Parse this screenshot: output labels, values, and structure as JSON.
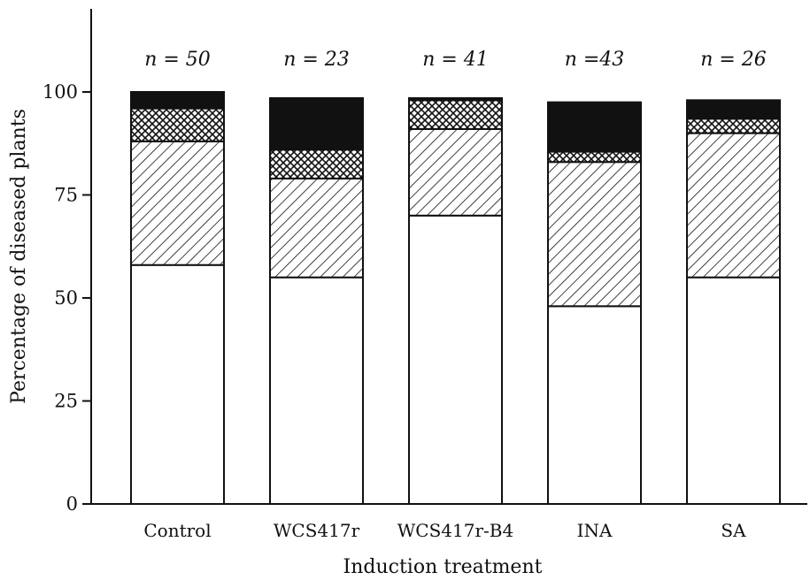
{
  "chart_data": {
    "type": "bar",
    "stacked": true,
    "categories": [
      "Control",
      "WCS417r",
      "WCS417r-B4",
      "INA",
      "SA"
    ],
    "n_labels": [
      "n = 50",
      "n = 23",
      "n = 41",
      "n =43",
      "n = 26"
    ],
    "series": [
      {
        "pattern": "none",
        "values": [
          58,
          55,
          70,
          48,
          55
        ]
      },
      {
        "pattern": "diagonal-hatch",
        "values": [
          30,
          24,
          21,
          35,
          35
        ]
      },
      {
        "pattern": "crosshatch",
        "values": [
          8,
          7,
          7,
          2.5,
          3.5
        ]
      },
      {
        "pattern": "solid-black",
        "values": [
          4,
          12.5,
          0.5,
          12,
          4.5
        ]
      }
    ],
    "xlabel": "Induction treatment",
    "ylabel": "Percentage of diseased plants",
    "ylim": [
      0,
      100
    ],
    "yticks": [
      0,
      25,
      50,
      75,
      100
    ],
    "grid": false
  }
}
